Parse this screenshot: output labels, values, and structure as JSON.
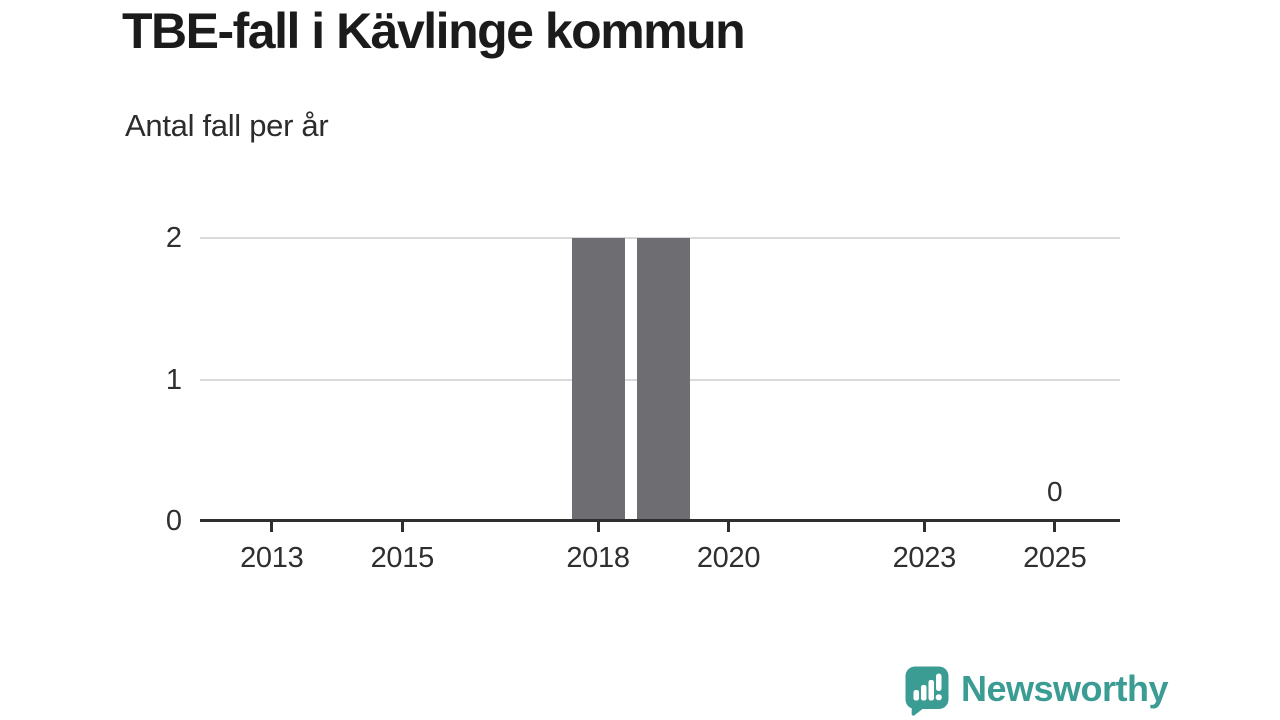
{
  "header": {
    "title": "TBE-fall i Kävlinge kommun",
    "subtitle": "Antal fall per år"
  },
  "chart_data": {
    "type": "bar",
    "title": "TBE-fall i Kävlinge kommun",
    "subtitle": "Antal fall per år",
    "xlabel": "",
    "ylabel": "",
    "x": [
      2012,
      2013,
      2014,
      2015,
      2016,
      2017,
      2018,
      2019,
      2020,
      2021,
      2022,
      2023,
      2024,
      2025
    ],
    "values": [
      0,
      0,
      0,
      0,
      0,
      0,
      2,
      2,
      0,
      0,
      0,
      0,
      0,
      0
    ],
    "x_ticks": [
      2013,
      2015,
      2018,
      2020,
      2023,
      2025
    ],
    "x_tick_labels": [
      "2013",
      "2015",
      "2018",
      "2020",
      "2023",
      "2025"
    ],
    "y_ticks": [
      0,
      1,
      2
    ],
    "y_tick_labels": [
      "0",
      "1",
      "2"
    ],
    "xlim": [
      2011.9,
      2026.0
    ],
    "ylim": [
      0,
      2
    ],
    "grid": true,
    "legend": false,
    "bar_color": "#6d6d72",
    "grid_color": "#d9d9d9",
    "axis_color": "#2f2f2f",
    "value_labels": [
      {
        "x": 2025,
        "label": "0"
      }
    ]
  },
  "footer": {
    "brand": "Newsworthy",
    "brand_color": "#3b9c94",
    "brand_icon": "speech-bubble-bar-chart-exclamation"
  }
}
